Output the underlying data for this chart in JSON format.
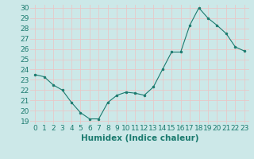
{
  "x": [
    0,
    1,
    2,
    3,
    4,
    5,
    6,
    7,
    8,
    9,
    10,
    11,
    12,
    13,
    14,
    15,
    16,
    17,
    18,
    19,
    20,
    21,
    22,
    23
  ],
  "y": [
    23.5,
    23.3,
    22.5,
    22.0,
    20.8,
    19.8,
    19.2,
    19.2,
    20.8,
    21.5,
    21.8,
    21.7,
    21.5,
    22.3,
    24.0,
    25.7,
    25.7,
    28.3,
    30.0,
    29.0,
    28.3,
    27.5,
    26.2,
    25.8
  ],
  "xlabel": "Humidex (Indice chaleur)",
  "ylim_min": 18.7,
  "ylim_max": 30.3,
  "xlim_min": -0.5,
  "xlim_max": 23.5,
  "line_color": "#1a7a6e",
  "marker_color": "#1a7a6e",
  "bg_color": "#cce8e8",
  "grid_color": "#e8c8c8",
  "yticks": [
    19,
    20,
    21,
    22,
    23,
    24,
    25,
    26,
    27,
    28,
    29,
    30
  ],
  "xticks": [
    0,
    1,
    2,
    3,
    4,
    5,
    6,
    7,
    8,
    9,
    10,
    11,
    12,
    13,
    14,
    15,
    16,
    17,
    18,
    19,
    20,
    21,
    22,
    23
  ],
  "xtick_labels": [
    "0",
    "1",
    "2",
    "3",
    "4",
    "5",
    "6",
    "7",
    "8",
    "9",
    "10",
    "11",
    "12",
    "13",
    "14",
    "15",
    "16",
    "17",
    "18",
    "19",
    "20",
    "21",
    "22",
    "23"
  ],
  "xlabel_fontsize": 7.5,
  "tick_fontsize": 6.5
}
